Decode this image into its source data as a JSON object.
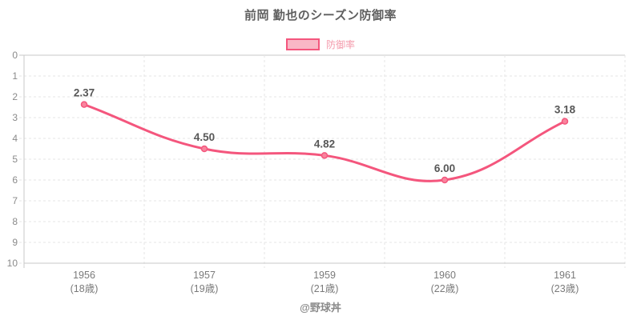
{
  "page": {
    "credit": "@野球丼"
  },
  "chart_data": {
    "type": "line",
    "title": "前岡 勤也のシーズン防御率",
    "legend": {
      "label": "防御率",
      "position": "top"
    },
    "categories": [
      "1956",
      "1957",
      "1959",
      "1960",
      "1961"
    ],
    "category_sublabels": [
      "(18歳)",
      "(19歳)",
      "(21歳)",
      "(22歳)",
      "(23歳)"
    ],
    "values": [
      2.37,
      4.5,
      4.82,
      6.0,
      3.18
    ],
    "value_labels": [
      "2.37",
      "4.50",
      "4.82",
      "6.00",
      "3.18"
    ],
    "xlabel": "",
    "ylabel": "",
    "y_axis": {
      "min": 0,
      "max": 10,
      "step": 1,
      "inverted": true
    },
    "grid": true,
    "line_tension": 0.4,
    "colors": {
      "line": "#f4567d",
      "point_fill": "#f8849d",
      "legend_box_fill": "#f9b7c6",
      "legend_text": "#f49aab",
      "title_text": "#5f5f5f",
      "data_label": "#575757",
      "axis_text": "#8a8a8a",
      "sub_axis_text": "#7a7a7a",
      "grid_line": "#e6e6e6",
      "axis_line": "#c9c9c9"
    }
  }
}
